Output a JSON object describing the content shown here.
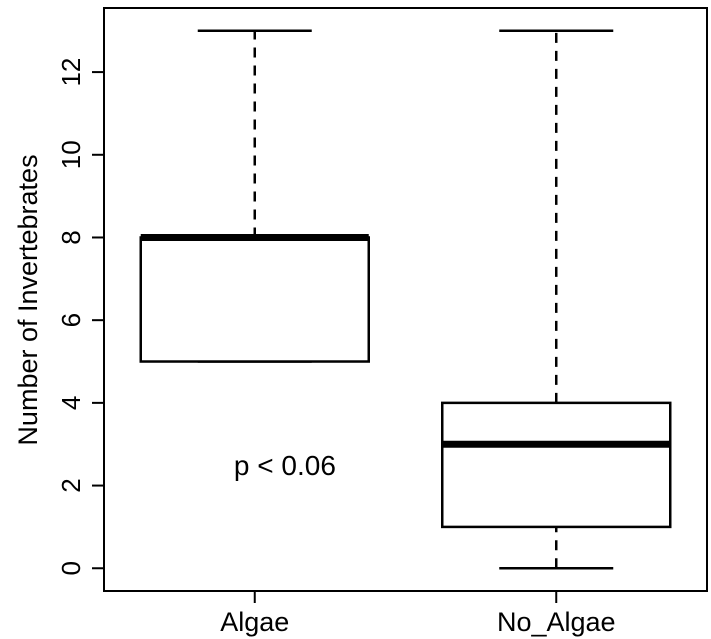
{
  "chart_data": {
    "type": "boxplot",
    "title": "",
    "xlabel": "",
    "ylabel": "Number of Invertebrates",
    "ylim": [
      -0.55,
      13.55
    ],
    "yticks": [
      0,
      2,
      4,
      6,
      8,
      10,
      12
    ],
    "grid": false,
    "categories": [
      "Algae",
      "No_Algae"
    ],
    "boxes": [
      {
        "category": "Algae",
        "min": 5,
        "q1": 5,
        "median": 8,
        "q3": 8,
        "max": 13
      },
      {
        "category": "No_Algae",
        "min": 0,
        "q1": 1,
        "median": 3,
        "q3": 4,
        "max": 13
      }
    ],
    "annotation": {
      "text": "p < 0.06",
      "x": 1.1,
      "y": 2.5
    }
  }
}
